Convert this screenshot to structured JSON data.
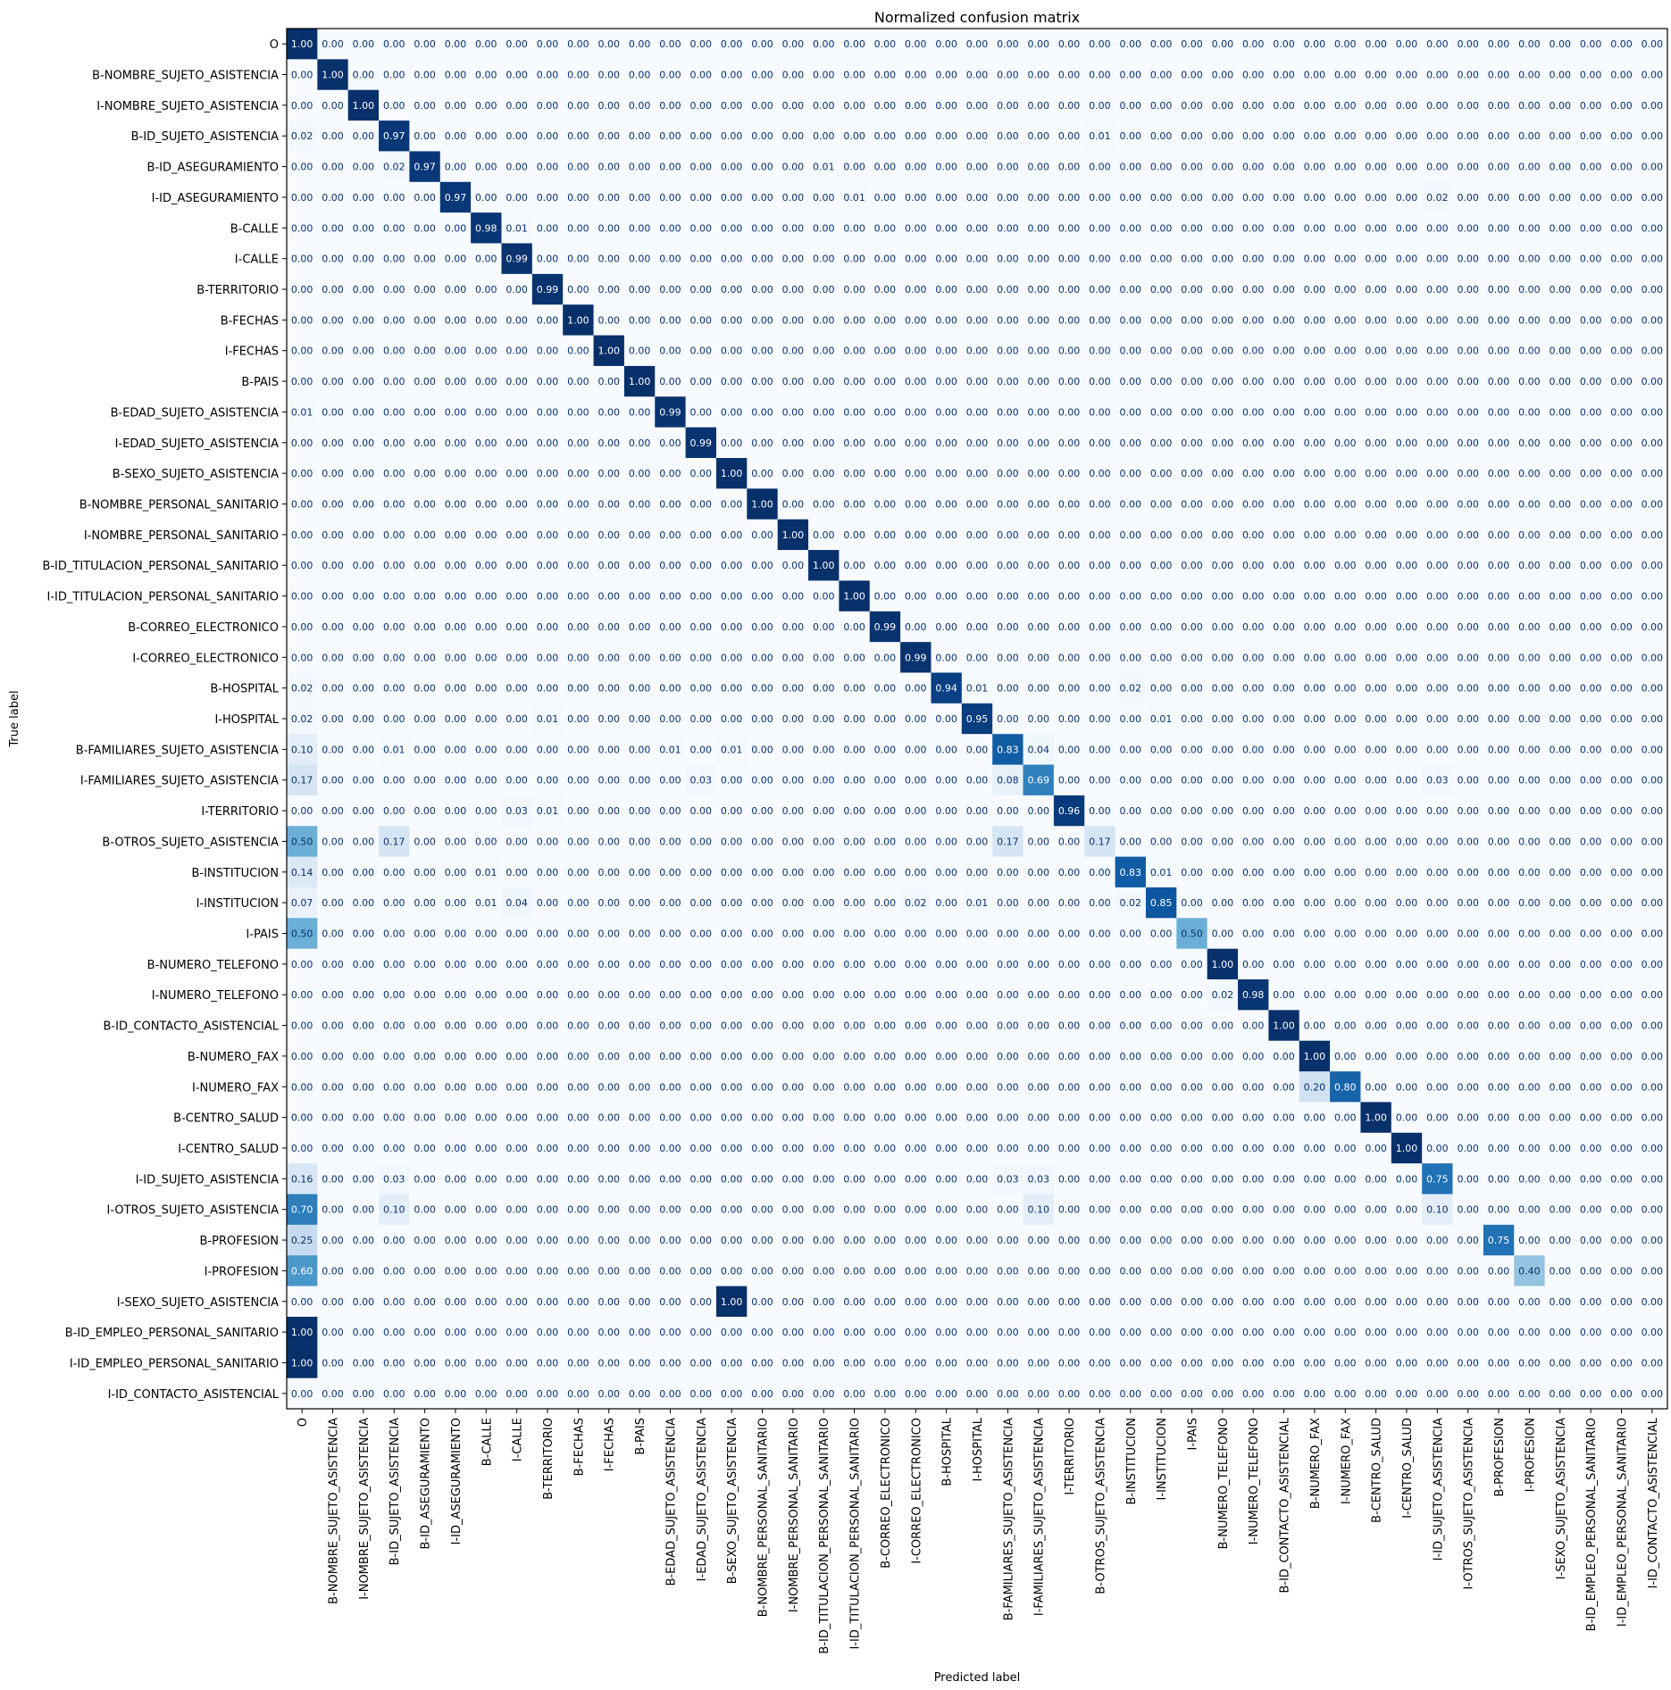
{
  "chart_data": {
    "type": "heatmap",
    "title": "Normalized confusion matrix",
    "xlabel": "Predicted label",
    "ylabel": "True label",
    "value_format": "0.00",
    "colormap": "Blues",
    "vmin": 0,
    "vmax": 1,
    "colors": {
      "low": "#f7fbff",
      "high": "#08306b"
    },
    "labels": [
      "O",
      "B-NOMBRE_SUJETO_ASISTENCIA",
      "I-NOMBRE_SUJETO_ASISTENCIA",
      "B-ID_SUJETO_ASISTENCIA",
      "B-ID_ASEGURAMIENTO",
      "I-ID_ASEGURAMIENTO",
      "B-CALLE",
      "I-CALLE",
      "B-TERRITORIO",
      "B-FECHAS",
      "I-FECHAS",
      "B-PAIS",
      "B-EDAD_SUJETO_ASISTENCIA",
      "I-EDAD_SUJETO_ASISTENCIA",
      "B-SEXO_SUJETO_ASISTENCIA",
      "B-NOMBRE_PERSONAL_SANITARIO",
      "I-NOMBRE_PERSONAL_SANITARIO",
      "B-ID_TITULACION_PERSONAL_SANITARIO",
      "I-ID_TITULACION_PERSONAL_SANITARIO",
      "B-CORREO_ELECTRONICO",
      "I-CORREO_ELECTRONICO",
      "B-HOSPITAL",
      "I-HOSPITAL",
      "B-FAMILIARES_SUJETO_ASISTENCIA",
      "I-FAMILIARES_SUJETO_ASISTENCIA",
      "I-TERRITORIO",
      "B-OTROS_SUJETO_ASISTENCIA",
      "B-INSTITUCION",
      "I-INSTITUCION",
      "I-PAIS",
      "B-NUMERO_TELEFONO",
      "I-NUMERO_TELEFONO",
      "B-ID_CONTACTO_ASISTENCIAL",
      "B-NUMERO_FAX",
      "I-NUMERO_FAX",
      "B-CENTRO_SALUD",
      "I-CENTRO_SALUD",
      "I-ID_SUJETO_ASISTENCIA",
      "I-OTROS_SUJETO_ASISTENCIA",
      "B-PROFESION",
      "I-PROFESION",
      "I-SEXO_SUJETO_ASISTENCIA",
      "B-ID_EMPLEO_PERSONAL_SANITARIO",
      "I-ID_EMPLEO_PERSONAL_SANITARIO",
      "I-ID_CONTACTO_ASISTENCIAL"
    ],
    "nonzero_cells": [
      {
        "row": 0,
        "col": 0,
        "value": 1.0
      },
      {
        "row": 1,
        "col": 1,
        "value": 1.0
      },
      {
        "row": 2,
        "col": 2,
        "value": 1.0
      },
      {
        "row": 3,
        "col": 0,
        "value": 0.02
      },
      {
        "row": 3,
        "col": 3,
        "value": 0.97
      },
      {
        "row": 3,
        "col": 26,
        "value": 0.01
      },
      {
        "row": 4,
        "col": 3,
        "value": 0.02
      },
      {
        "row": 4,
        "col": 4,
        "value": 0.97
      },
      {
        "row": 4,
        "col": 17,
        "value": 0.01
      },
      {
        "row": 5,
        "col": 5,
        "value": 0.97
      },
      {
        "row": 5,
        "col": 18,
        "value": 0.01
      },
      {
        "row": 5,
        "col": 37,
        "value": 0.02
      },
      {
        "row": 6,
        "col": 6,
        "value": 0.98
      },
      {
        "row": 6,
        "col": 7,
        "value": 0.01
      },
      {
        "row": 7,
        "col": 7,
        "value": 0.99
      },
      {
        "row": 8,
        "col": 8,
        "value": 0.99
      },
      {
        "row": 9,
        "col": 9,
        "value": 1.0
      },
      {
        "row": 10,
        "col": 10,
        "value": 1.0
      },
      {
        "row": 11,
        "col": 11,
        "value": 1.0
      },
      {
        "row": 12,
        "col": 0,
        "value": 0.01
      },
      {
        "row": 12,
        "col": 12,
        "value": 0.99
      },
      {
        "row": 13,
        "col": 13,
        "value": 0.99
      },
      {
        "row": 14,
        "col": 14,
        "value": 1.0
      },
      {
        "row": 15,
        "col": 15,
        "value": 1.0
      },
      {
        "row": 16,
        "col": 16,
        "value": 1.0
      },
      {
        "row": 17,
        "col": 17,
        "value": 1.0
      },
      {
        "row": 18,
        "col": 18,
        "value": 1.0
      },
      {
        "row": 19,
        "col": 19,
        "value": 0.99
      },
      {
        "row": 20,
        "col": 20,
        "value": 0.99
      },
      {
        "row": 21,
        "col": 0,
        "value": 0.02
      },
      {
        "row": 21,
        "col": 21,
        "value": 0.94
      },
      {
        "row": 21,
        "col": 22,
        "value": 0.01
      },
      {
        "row": 21,
        "col": 27,
        "value": 0.02
      },
      {
        "row": 22,
        "col": 0,
        "value": 0.02
      },
      {
        "row": 22,
        "col": 8,
        "value": 0.01
      },
      {
        "row": 22,
        "col": 22,
        "value": 0.95
      },
      {
        "row": 22,
        "col": 28,
        "value": 0.01
      },
      {
        "row": 23,
        "col": 0,
        "value": 0.1
      },
      {
        "row": 23,
        "col": 3,
        "value": 0.01
      },
      {
        "row": 23,
        "col": 12,
        "value": 0.01
      },
      {
        "row": 23,
        "col": 14,
        "value": 0.01
      },
      {
        "row": 23,
        "col": 23,
        "value": 0.83
      },
      {
        "row": 23,
        "col": 24,
        "value": 0.04
      },
      {
        "row": 24,
        "col": 0,
        "value": 0.17
      },
      {
        "row": 24,
        "col": 13,
        "value": 0.03
      },
      {
        "row": 24,
        "col": 23,
        "value": 0.08
      },
      {
        "row": 24,
        "col": 24,
        "value": 0.69
      },
      {
        "row": 24,
        "col": 37,
        "value": 0.03
      },
      {
        "row": 25,
        "col": 7,
        "value": 0.03
      },
      {
        "row": 25,
        "col": 8,
        "value": 0.01
      },
      {
        "row": 25,
        "col": 25,
        "value": 0.96
      },
      {
        "row": 26,
        "col": 0,
        "value": 0.5
      },
      {
        "row": 26,
        "col": 3,
        "value": 0.17
      },
      {
        "row": 26,
        "col": 23,
        "value": 0.17
      },
      {
        "row": 26,
        "col": 26,
        "value": 0.17
      },
      {
        "row": 27,
        "col": 0,
        "value": 0.14
      },
      {
        "row": 27,
        "col": 6,
        "value": 0.01
      },
      {
        "row": 27,
        "col": 27,
        "value": 0.83
      },
      {
        "row": 27,
        "col": 28,
        "value": 0.01
      },
      {
        "row": 28,
        "col": 0,
        "value": 0.07
      },
      {
        "row": 28,
        "col": 6,
        "value": 0.01
      },
      {
        "row": 28,
        "col": 7,
        "value": 0.04
      },
      {
        "row": 28,
        "col": 20,
        "value": 0.02
      },
      {
        "row": 28,
        "col": 22,
        "value": 0.01
      },
      {
        "row": 28,
        "col": 27,
        "value": 0.02
      },
      {
        "row": 28,
        "col": 28,
        "value": 0.85
      },
      {
        "row": 29,
        "col": 0,
        "value": 0.5
      },
      {
        "row": 29,
        "col": 29,
        "value": 0.5
      },
      {
        "row": 30,
        "col": 30,
        "value": 1.0
      },
      {
        "row": 31,
        "col": 30,
        "value": 0.02
      },
      {
        "row": 31,
        "col": 31,
        "value": 0.98
      },
      {
        "row": 32,
        "col": 32,
        "value": 1.0
      },
      {
        "row": 33,
        "col": 33,
        "value": 1.0
      },
      {
        "row": 34,
        "col": 33,
        "value": 0.2
      },
      {
        "row": 34,
        "col": 34,
        "value": 0.8
      },
      {
        "row": 35,
        "col": 35,
        "value": 1.0
      },
      {
        "row": 36,
        "col": 36,
        "value": 1.0
      },
      {
        "row": 37,
        "col": 0,
        "value": 0.16
      },
      {
        "row": 37,
        "col": 3,
        "value": 0.03
      },
      {
        "row": 37,
        "col": 23,
        "value": 0.03
      },
      {
        "row": 37,
        "col": 24,
        "value": 0.03
      },
      {
        "row": 37,
        "col": 37,
        "value": 0.75
      },
      {
        "row": 38,
        "col": 0,
        "value": 0.7
      },
      {
        "row": 38,
        "col": 3,
        "value": 0.1
      },
      {
        "row": 38,
        "col": 24,
        "value": 0.1
      },
      {
        "row": 38,
        "col": 37,
        "value": 0.1
      },
      {
        "row": 39,
        "col": 0,
        "value": 0.25
      },
      {
        "row": 39,
        "col": 39,
        "value": 0.75
      },
      {
        "row": 40,
        "col": 0,
        "value": 0.6
      },
      {
        "row": 40,
        "col": 40,
        "value": 0.4
      },
      {
        "row": 41,
        "col": 14,
        "value": 1.0
      },
      {
        "row": 42,
        "col": 0,
        "value": 1.0
      },
      {
        "row": 43,
        "col": 0,
        "value": 1.0
      }
    ],
    "default_value": 0.0
  }
}
